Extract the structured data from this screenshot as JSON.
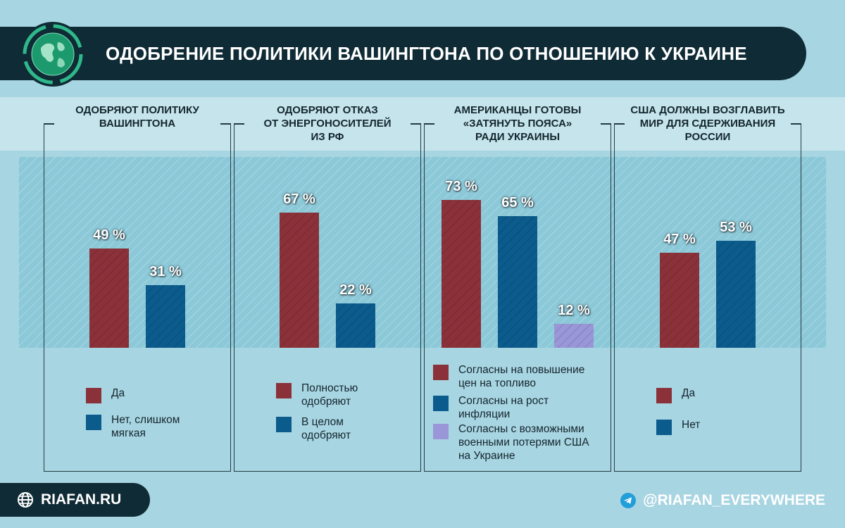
{
  "header": {
    "title": "ОДОБРЕНИЕ ПОЛИТИКИ ВАШИНГТОНА ПО ОТНОШЕНИЮ К УКРАИНЕ",
    "logo": "globe-icon"
  },
  "colors": {
    "dark": "#0f2b35",
    "red": "#8b3139",
    "blue": "#0b5b8c",
    "lavender": "#9a97d8",
    "background": "#a8d5e2"
  },
  "footer": {
    "site": "RIAFAN.RU",
    "telegram": "@RIAFAN_EVERYWHERE"
  },
  "chart_data": [
    {
      "type": "bar",
      "title": "ОДОБРЯЮТ ПОЛИТИКУ\nВАШИНГТОНА",
      "series": [
        {
          "name": "Да",
          "value": 49,
          "label": "49 %",
          "color": "#8b3139"
        },
        {
          "name": "Нет, слишком\nмягкая",
          "value": 31,
          "label": "31 %",
          "color": "#0b5b8c"
        }
      ]
    },
    {
      "type": "bar",
      "title": "ОДОБРЯЮТ ОТКАЗ\nОТ ЭНЕРГОНОСИТЕЛЕЙ\nИЗ РФ",
      "series": [
        {
          "name": "Полностью\nодобряют",
          "value": 67,
          "label": "67 %",
          "color": "#8b3139"
        },
        {
          "name": "В целом\nодобряют",
          "value": 22,
          "label": "22 %",
          "color": "#0b5b8c"
        }
      ]
    },
    {
      "type": "bar",
      "title": "АМЕРИКАНЦЫ ГОТОВЫ\n«ЗАТЯНУТЬ ПОЯСА»\nРАДИ УКРАИНЫ",
      "series": [
        {
          "name": "Согласны на повышение\nцен на топливо",
          "value": 73,
          "label": "73 %",
          "color": "#8b3139"
        },
        {
          "name": "Согласны на рост\nинфляции",
          "value": 65,
          "label": "65 %",
          "color": "#0b5b8c"
        },
        {
          "name": "Согласны с возможными\nвоенными потерями США\nна Украине",
          "value": 12,
          "label": "12 %",
          "color": "#9a97d8"
        }
      ]
    },
    {
      "type": "bar",
      "title": "США ДОЛЖНЫ ВОЗГЛАВИТЬ\nМИР ДЛЯ СДЕРЖИВАНИЯ\nРОССИИ",
      "series": [
        {
          "name": "Да",
          "value": 47,
          "label": "47 %",
          "color": "#8b3139"
        },
        {
          "name": "Нет",
          "value": 53,
          "label": "53 %",
          "color": "#0b5b8c"
        }
      ]
    }
  ]
}
